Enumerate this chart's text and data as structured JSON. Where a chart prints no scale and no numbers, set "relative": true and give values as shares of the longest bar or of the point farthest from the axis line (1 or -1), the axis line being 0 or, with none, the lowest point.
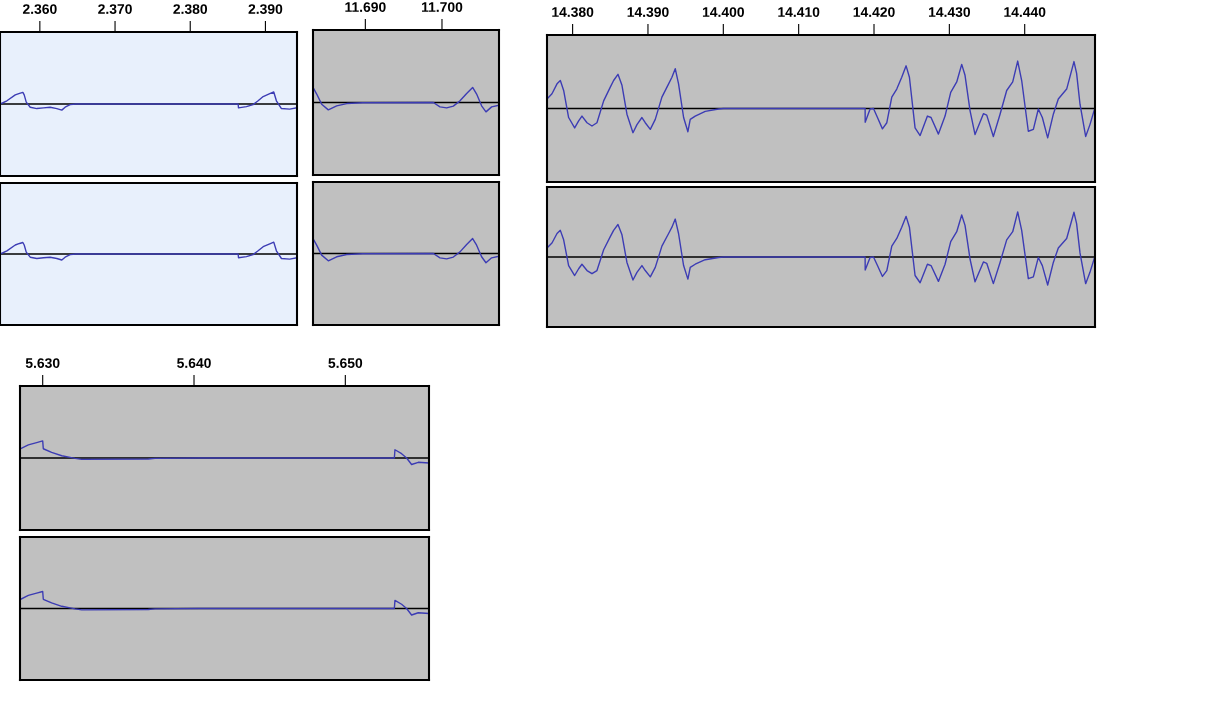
{
  "chart_data": [
    {
      "type": "line",
      "relative": true,
      "tick_labels": "x",
      "xlim": [
        2.3547,
        2.3942
      ],
      "xticks": [
        {
          "value": 2.36,
          "label": "2.360"
        },
        {
          "value": 2.37,
          "label": "2.370"
        },
        {
          "value": 2.38,
          "label": "2.380"
        },
        {
          "value": 2.39,
          "label": "2.390"
        }
      ],
      "series": [
        {
          "color": "#3c3cb4",
          "x": [
            2.35473,
            2.35562,
            2.35673,
            2.3573,
            2.35774,
            2.35792,
            2.35819,
            2.35872,
            2.3596,
            2.36049,
            2.36137,
            2.36226,
            2.36292,
            2.36336,
            2.36403,
            2.36482,
            2.38637,
            2.38642,
            2.38748,
            2.38836,
            2.38903,
            2.3897,
            2.39058,
            2.39111,
            2.39146,
            2.39213,
            2.39323,
            2.39412
          ],
          "values": [
            0,
            0.27,
            0.76,
            0.89,
            0.97,
            0.76,
            0.16,
            -0.27,
            -0.38,
            -0.32,
            -0.27,
            -0.38,
            -0.51,
            -0.27,
            -0.05,
            0,
            0,
            -0.32,
            -0.22,
            -0.05,
            0.27,
            0.62,
            0.86,
            1,
            0.27,
            -0.38,
            -0.43,
            -0.32
          ]
        }
      ]
    },
    {
      "type": "line",
      "relative": true,
      "tick_labels": false,
      "xlim": [
        2.3547,
        2.3942
      ],
      "series": [
        {
          "color": "#3c3cb4",
          "x": [
            2.35473,
            2.35562,
            2.35673,
            2.3573,
            2.35774,
            2.35792,
            2.35819,
            2.35872,
            2.3596,
            2.36049,
            2.36137,
            2.36226,
            2.36292,
            2.36336,
            2.36403,
            2.36482,
            2.38637,
            2.38642,
            2.38748,
            2.38836,
            2.38903,
            2.3897,
            2.39058,
            2.39111,
            2.39146,
            2.39213,
            2.39323,
            2.39412
          ],
          "values": [
            0,
            0.27,
            0.76,
            0.89,
            0.97,
            0.76,
            0.16,
            -0.27,
            -0.38,
            -0.32,
            -0.27,
            -0.38,
            -0.51,
            -0.27,
            -0.05,
            0,
            0,
            -0.32,
            -0.22,
            -0.05,
            0.27,
            0.62,
            0.86,
            1,
            0.27,
            -0.38,
            -0.43,
            -0.32
          ]
        }
      ]
    },
    {
      "type": "line",
      "relative": true,
      "tick_labels": "x",
      "xlim": [
        11.68317,
        11.70744
      ],
      "xticks": [
        {
          "value": 11.69,
          "label": "11.690"
        },
        {
          "value": 11.7,
          "label": "11.700"
        }
      ],
      "series": [
        {
          "color": "#3c3cb4",
          "x": [
            11.68317,
            11.68365,
            11.6843,
            11.68517,
            11.68626,
            11.68757,
            11.68965,
            11.69887,
            11.69974,
            11.70061,
            11.70148,
            11.70235,
            11.70322,
            11.704,
            11.70452,
            11.70517,
            11.70574,
            11.70648,
            11.70744
          ],
          "values": [
            1,
            0.56,
            -0.11,
            -0.49,
            -0.22,
            -0.07,
            -0.02,
            0,
            -0.29,
            -0.36,
            -0.24,
            0.11,
            0.6,
            1,
            0.56,
            -0.22,
            -0.62,
            -0.29,
            -0.18
          ]
        }
      ]
    },
    {
      "type": "line",
      "relative": true,
      "tick_labels": false,
      "xlim": [
        11.68317,
        11.70744
      ],
      "series": [
        {
          "color": "#3c3cb4",
          "x": [
            11.68317,
            11.68365,
            11.6843,
            11.68517,
            11.68626,
            11.68757,
            11.68965,
            11.69887,
            11.69974,
            11.70061,
            11.70148,
            11.70235,
            11.70322,
            11.704,
            11.70452,
            11.70517,
            11.70574,
            11.70648,
            11.70744
          ],
          "values": [
            1,
            0.56,
            -0.11,
            -0.49,
            -0.22,
            -0.07,
            -0.02,
            0,
            -0.29,
            -0.36,
            -0.24,
            0.11,
            0.6,
            1,
            0.56,
            -0.22,
            -0.62,
            -0.29,
            -0.18
          ]
        }
      ]
    },
    {
      "type": "line",
      "relative": true,
      "tick_labels": "x",
      "xlim": [
        14.3766,
        14.44933
      ],
      "xticks": [
        {
          "value": 14.38,
          "label": "14.380"
        },
        {
          "value": 14.39,
          "label": "14.390"
        },
        {
          "value": 14.4,
          "label": "14.400"
        },
        {
          "value": 14.41,
          "label": "14.410"
        },
        {
          "value": 14.42,
          "label": "14.420"
        },
        {
          "value": 14.43,
          "label": "14.430"
        },
        {
          "value": 14.44,
          "label": "14.440"
        }
      ],
      "series": [
        {
          "color": "#3c3cb4",
          "x": [
            14.3766,
            14.37726,
            14.37793,
            14.37837,
            14.37881,
            14.37947,
            14.38027,
            14.3808,
            14.38124,
            14.38191,
            14.38257,
            14.38323,
            14.38412,
            14.385,
            14.38544,
            14.38602,
            14.38655,
            14.38721,
            14.38801,
            14.38854,
            14.3892,
            14.38964,
            14.39031,
            14.39097,
            14.39185,
            14.39274,
            14.39318,
            14.39362,
            14.39406,
            14.39473,
            14.3953,
            14.39561,
            14.39627,
            14.3976,
            14.39937,
            14.40003,
            14.41882,
            14.41883,
            14.41948,
            14.41993,
            14.42046,
            14.42112,
            14.4217,
            14.42236,
            14.42302,
            14.42368,
            14.42426,
            14.4247,
            14.42545,
            14.42612,
            14.42709,
            14.42757,
            14.42855,
            14.42943,
            14.43018,
            14.43098,
            14.43164,
            14.43208,
            14.43275,
            14.43341,
            14.43452,
            14.43496,
            14.43584,
            14.43673,
            14.43761,
            14.43841,
            14.43907,
            14.4396,
            14.44048,
            14.44115,
            14.44181,
            14.44234,
            14.44305,
            14.4438,
            14.44446,
            14.44557,
            14.44654,
            14.44689,
            14.44734,
            14.44809,
            14.44866,
            14.44933
          ],
          "values": [
            0.2,
            0.31,
            0.52,
            0.59,
            0.38,
            -0.19,
            -0.41,
            -0.26,
            -0.16,
            -0.3,
            -0.37,
            -0.3,
            0.16,
            0.45,
            0.59,
            0.72,
            0.49,
            -0.12,
            -0.51,
            -0.34,
            -0.19,
            -0.3,
            -0.44,
            -0.23,
            0.24,
            0.52,
            0.66,
            0.84,
            0.52,
            -0.19,
            -0.49,
            -0.23,
            -0.16,
            -0.06,
            -0.01,
            0,
            0,
            -0.29,
            -0.01,
            0,
            -0.19,
            -0.43,
            -0.3,
            0.24,
            0.41,
            0.66,
            0.9,
            0.66,
            -0.41,
            -0.57,
            -0.16,
            -0.19,
            -0.54,
            -0.16,
            0.34,
            0.56,
            0.93,
            0.7,
            -0.05,
            -0.55,
            -0.11,
            -0.14,
            -0.59,
            -0.12,
            0.38,
            0.56,
            1,
            0.59,
            -0.48,
            -0.44,
            -0.01,
            -0.19,
            -0.62,
            -0.12,
            0.2,
            0.41,
            0.99,
            0.74,
            0.09,
            -0.59,
            -0.34,
            0.02
          ]
        }
      ]
    },
    {
      "type": "line",
      "relative": true,
      "tick_labels": false,
      "xlim": [
        14.3766,
        14.44933
      ],
      "series": [
        {
          "color": "#3c3cb4",
          "x": [
            14.3766,
            14.37726,
            14.37793,
            14.37837,
            14.37881,
            14.37947,
            14.38027,
            14.3808,
            14.38124,
            14.38191,
            14.38257,
            14.38323,
            14.38412,
            14.385,
            14.38544,
            14.38602,
            14.38655,
            14.38721,
            14.38801,
            14.38854,
            14.3892,
            14.38964,
            14.39031,
            14.39097,
            14.39185,
            14.39274,
            14.39318,
            14.39362,
            14.39406,
            14.39473,
            14.3953,
            14.39561,
            14.39627,
            14.3976,
            14.39937,
            14.40003,
            14.41882,
            14.41883,
            14.41948,
            14.41993,
            14.42046,
            14.42112,
            14.4217,
            14.42236,
            14.42302,
            14.42368,
            14.42426,
            14.4247,
            14.42545,
            14.42612,
            14.42709,
            14.42757,
            14.42855,
            14.42943,
            14.43018,
            14.43098,
            14.43164,
            14.43208,
            14.43275,
            14.43341,
            14.43452,
            14.43496,
            14.43584,
            14.43673,
            14.43761,
            14.43841,
            14.43907,
            14.4396,
            14.44048,
            14.44115,
            14.44181,
            14.44234,
            14.44305,
            14.4438,
            14.44446,
            14.44557,
            14.44654,
            14.44689,
            14.44734,
            14.44809,
            14.44866,
            14.44933
          ],
          "values": [
            0.2,
            0.31,
            0.52,
            0.59,
            0.38,
            -0.19,
            -0.41,
            -0.26,
            -0.16,
            -0.3,
            -0.37,
            -0.3,
            0.16,
            0.45,
            0.59,
            0.72,
            0.49,
            -0.12,
            -0.51,
            -0.34,
            -0.19,
            -0.3,
            -0.44,
            -0.23,
            0.24,
            0.52,
            0.66,
            0.84,
            0.52,
            -0.19,
            -0.49,
            -0.23,
            -0.16,
            -0.06,
            -0.01,
            0,
            0,
            -0.29,
            -0.01,
            0,
            -0.19,
            -0.43,
            -0.3,
            0.24,
            0.41,
            0.66,
            0.9,
            0.66,
            -0.41,
            -0.57,
            -0.16,
            -0.19,
            -0.54,
            -0.16,
            0.34,
            0.56,
            0.93,
            0.7,
            -0.05,
            -0.55,
            -0.11,
            -0.14,
            -0.59,
            -0.12,
            0.38,
            0.56,
            1,
            0.59,
            -0.48,
            -0.44,
            -0.01,
            -0.19,
            -0.62,
            -0.12,
            0.2,
            0.41,
            0.99,
            0.74,
            0.09,
            -0.59,
            -0.34,
            0.02
          ]
        }
      ]
    },
    {
      "type": "line",
      "relative": true,
      "tick_labels": "x",
      "xlim": [
        5.6285,
        5.65553
      ],
      "xticks": [
        {
          "value": 5.63,
          "label": "5.630"
        },
        {
          "value": 5.64,
          "label": "5.640"
        },
        {
          "value": 5.65,
          "label": "5.650"
        }
      ],
      "series": [
        {
          "color": "#3c3cb4",
          "x": [
            5.6285,
            5.62905,
            5.6296,
            5.63,
            5.63004,
            5.63059,
            5.63126,
            5.63181,
            5.63214,
            5.63258,
            5.63698,
            5.63742,
            5.64029,
            5.65324,
            5.65328,
            5.65372,
            5.65405,
            5.65438,
            5.65482,
            5.65553
          ],
          "values": [
            0.52,
            0.77,
            0.9,
            1,
            0.54,
            0.33,
            0.13,
            0.04,
            -0.02,
            -0.08,
            -0.06,
            -0.02,
            0,
            0,
            0.48,
            0.25,
            0,
            -0.38,
            -0.25,
            -0.29
          ]
        }
      ]
    },
    {
      "type": "line",
      "relative": true,
      "tick_labels": false,
      "xlim": [
        5.6285,
        5.65553
      ],
      "series": [
        {
          "color": "#3c3cb4",
          "x": [
            5.6285,
            5.62905,
            5.6296,
            5.63,
            5.63004,
            5.63059,
            5.63126,
            5.63181,
            5.63214,
            5.63258,
            5.63698,
            5.63742,
            5.64029,
            5.65324,
            5.65328,
            5.65372,
            5.65405,
            5.65438,
            5.65482,
            5.65553
          ],
          "values": [
            0.52,
            0.77,
            0.9,
            1,
            0.54,
            0.33,
            0.13,
            0.04,
            -0.02,
            -0.08,
            -0.06,
            -0.02,
            0,
            0,
            0.48,
            0.25,
            0,
            -0.38,
            -0.25,
            -0.29
          ]
        }
      ]
    }
  ]
}
